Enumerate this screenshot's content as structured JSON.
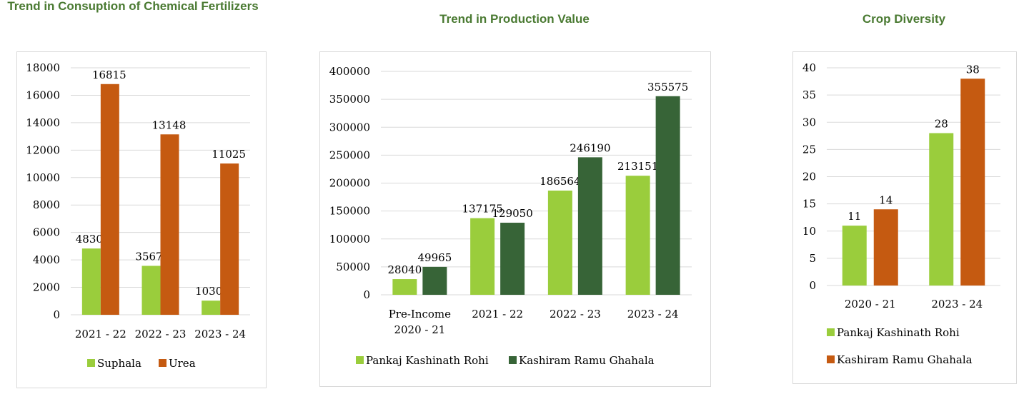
{
  "chart_data": [
    {
      "type": "bar",
      "title": "Trend in Consuption of Chemical Fertilizers",
      "categories": [
        "2021 - 22",
        "2022 - 23",
        "2023 - 24"
      ],
      "series": [
        {
          "name": "Suphala",
          "values": [
            4830,
            3567,
            1030
          ],
          "color": "#9ACD3C"
        },
        {
          "name": "Urea",
          "values": [
            16815,
            13148,
            11025
          ],
          "color": "#C55A11"
        }
      ],
      "ylim": [
        0,
        18000
      ],
      "yticks": [
        "0",
        "2000",
        "4000",
        "6000",
        "8000",
        "10000",
        "12000",
        "14000",
        "16000",
        "18000"
      ],
      "grid": true,
      "legend": "bottom"
    },
    {
      "type": "bar",
      "title": "Trend in Production Value",
      "categories": [
        [
          "Pre-Income",
          "2020 - 21"
        ],
        [
          "2021 - 22"
        ],
        [
          "2022 - 23"
        ],
        [
          "2023 - 24"
        ]
      ],
      "series": [
        {
          "name": "Pankaj Kashinath Rohi",
          "values": [
            28040,
            137175,
            186564,
            213151
          ],
          "color": "#9ACD3C"
        },
        {
          "name": "Kashiram Ramu Ghahala",
          "values": [
            49965,
            129050,
            246190,
            355575
          ],
          "color": "#376437"
        }
      ],
      "ylim": [
        0,
        400000
      ],
      "yticks": [
        "0",
        "50000",
        "100000",
        "150000",
        "200000",
        "250000",
        "300000",
        "350000",
        "400000"
      ],
      "grid": true,
      "legend": "bottom"
    },
    {
      "type": "bar",
      "title": "Crop Diversity",
      "categories": [
        "2020 - 21",
        "2023 - 24"
      ],
      "series": [
        {
          "name": "Pankaj Kashinath Rohi",
          "values": [
            11,
            28
          ],
          "color": "#9ACD3C"
        },
        {
          "name": "Kashiram Ramu Ghahala",
          "values": [
            14,
            38
          ],
          "color": "#C55A11"
        }
      ],
      "ylim": [
        0,
        40
      ],
      "yticks": [
        "0",
        "5",
        "10",
        "15",
        "20",
        "25",
        "30",
        "35",
        "40"
      ],
      "grid": true,
      "legend": "bottom-stacked"
    }
  ]
}
